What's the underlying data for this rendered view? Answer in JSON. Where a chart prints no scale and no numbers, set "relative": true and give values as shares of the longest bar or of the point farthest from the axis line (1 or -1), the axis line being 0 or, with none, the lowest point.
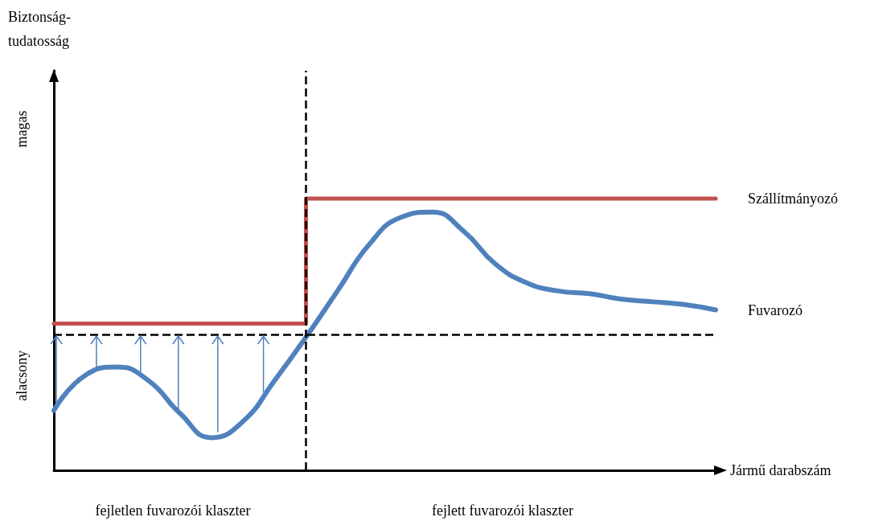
{
  "chart_data": {
    "type": "line",
    "relative": true,
    "xlabel": "Jármű darabszám",
    "annotations": [
      "magas",
      "alacsony",
      "fejletlen fuvarozói klaszter",
      "fejlett fuvarozói klaszter",
      "Biztonság-tudatosság"
    ],
    "categories": [
      null,
      null,
      null,
      null,
      null,
      null,
      null,
      null,
      null,
      null,
      null,
      null,
      null,
      null,
      null,
      null,
      null,
      null,
      null,
      null,
      null,
      null
    ],
    "series": [
      {
        "name": "Szállítmányozó",
        "type": "step",
        "color": "#c0504d",
        "values": [
          0.54,
          0.54,
          0.54,
          0.54,
          0.54,
          0.54,
          0.54,
          0.54,
          0.54,
          1,
          1,
          1,
          1,
          1,
          1,
          1,
          1,
          1,
          1,
          1,
          1,
          1
        ]
      },
      {
        "name": "Fuvarozó",
        "color": "#4f81bd",
        "values": [
          0.22,
          0.35,
          0.38,
          0.33,
          0.21,
          0.12,
          0.18,
          0.33,
          0.49,
          0.66,
          0.83,
          0.93,
          0.95,
          0.88,
          0.76,
          0.69,
          0.66,
          0.65,
          0.63,
          0.62,
          0.61,
          0.59
        ]
      }
    ],
    "ref_lines": [
      {
        "axis": "y",
        "value": 0.5,
        "color": "#000000",
        "line_style": "dashed"
      }
    ],
    "legend": false,
    "grid": false,
    "marker": "none",
    "line_style": "solid"
  }
}
